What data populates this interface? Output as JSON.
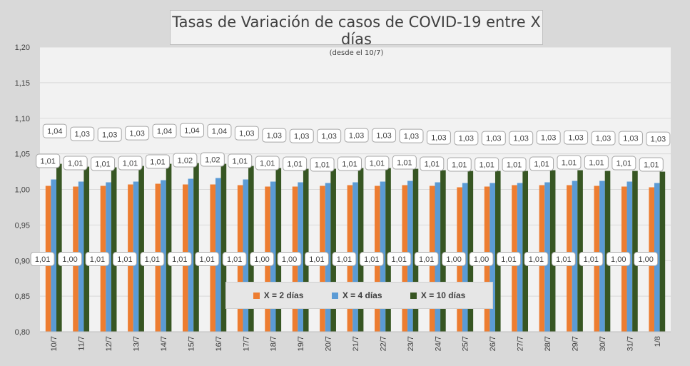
{
  "chart_data": {
    "type": "bar",
    "title": "Tasas de Variación de casos de COVID-19 entre X días",
    "subtitle": "(desde el 10/7)",
    "ylim": [
      0.8,
      1.2
    ],
    "yticks": [
      "0,80",
      "0,85",
      "0,90",
      "0,95",
      "1,00",
      "1,05",
      "1,10",
      "1,15",
      "1,20"
    ],
    "grid": true,
    "legend_position": "bottom-center",
    "categories": [
      "10/7",
      "11/7",
      "12/7",
      "13/7",
      "14/7",
      "15/7",
      "16/7",
      "17/7",
      "18/7",
      "19/7",
      "20/7",
      "21/7",
      "22/7",
      "23/7",
      "24/7",
      "25/7",
      "26/7",
      "27/7",
      "28/7",
      "29/7",
      "30/7",
      "31/7",
      "1/8"
    ],
    "series": [
      {
        "name": "X = 2 días",
        "color": "#ed7d31",
        "values": [
          1.005,
          1.004,
          1.005,
          1.007,
          1.008,
          1.007,
          1.007,
          1.006,
          1.004,
          1.004,
          1.005,
          1.006,
          1.005,
          1.006,
          1.005,
          1.003,
          1.004,
          1.006,
          1.006,
          1.006,
          1.005,
          1.004,
          1.003
        ],
        "labels": [
          "1,01",
          "1,00",
          "1,01",
          "1,01",
          "1,01",
          "1,01",
          "1,01",
          "1,01",
          "1,00",
          "1,00",
          "1,01",
          "1,01",
          "1,01",
          "1,01",
          "1,01",
          "1,00",
          "1,00",
          "1,01",
          "1,01",
          "1,01",
          "1,01",
          "1,00",
          "1,00"
        ]
      },
      {
        "name": "X = 4 días",
        "color": "#5b9bd5",
        "values": [
          1.014,
          1.011,
          1.01,
          1.011,
          1.013,
          1.015,
          1.016,
          1.014,
          1.011,
          1.01,
          1.009,
          1.01,
          1.011,
          1.012,
          1.01,
          1.009,
          1.009,
          1.009,
          1.01,
          1.012,
          1.012,
          1.011,
          1.009
        ],
        "labels": [
          "1,01",
          "1,01",
          "1,01",
          "1,01",
          "1,01",
          "1,02",
          "1,02",
          "1,01",
          "1,01",
          "1,01",
          "1,01",
          "1,01",
          "1,01",
          "1,01",
          "1,01",
          "1,01",
          "1,01",
          "1,01",
          "1,01",
          "1,01",
          "1,01",
          "1,01",
          "1,01"
        ]
      },
      {
        "name": "X = 10 días",
        "color": "#375623",
        "values": [
          1.036,
          1.032,
          1.031,
          1.033,
          1.036,
          1.037,
          1.036,
          1.033,
          1.03,
          1.029,
          1.029,
          1.03,
          1.03,
          1.029,
          1.027,
          1.026,
          1.026,
          1.026,
          1.027,
          1.027,
          1.026,
          1.026,
          1.025
        ],
        "labels": [
          "1,04",
          "1,03",
          "1,03",
          "1,03",
          "1,04",
          "1,04",
          "1,04",
          "1,03",
          "1,03",
          "1,03",
          "1,03",
          "1,03",
          "1,03",
          "1,03",
          "1,03",
          "1,03",
          "1,03",
          "1,03",
          "1,03",
          "1,03",
          "1,03",
          "1,03",
          "1,03"
        ]
      }
    ]
  }
}
